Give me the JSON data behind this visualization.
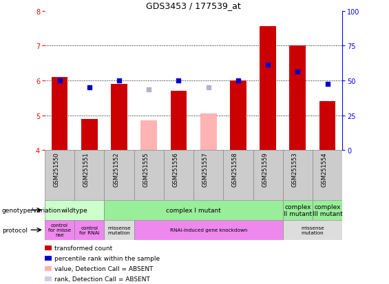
{
  "title": "GDS3453 / 177539_at",
  "samples": [
    "GSM251550",
    "GSM251551",
    "GSM251552",
    "GSM251555",
    "GSM251556",
    "GSM251557",
    "GSM251558",
    "GSM251559",
    "GSM251553",
    "GSM251554"
  ],
  "bar_values": [
    6.1,
    4.9,
    5.9,
    null,
    5.7,
    null,
    6.0,
    7.55,
    7.0,
    5.4
  ],
  "bar_absent_values": [
    null,
    null,
    null,
    4.85,
    null,
    5.05,
    null,
    null,
    null,
    null
  ],
  "dot_values": [
    6.0,
    5.8,
    6.0,
    5.75,
    6.0,
    5.8,
    6.0,
    6.45,
    6.25,
    5.9
  ],
  "dot_absent": [
    false,
    false,
    false,
    true,
    false,
    true,
    false,
    false,
    false,
    false
  ],
  "ylim": [
    4.0,
    8.0
  ],
  "yticks_left": [
    4,
    5,
    6,
    7,
    8
  ],
  "yticks_right": [
    0,
    25,
    50,
    75,
    100
  ],
  "bar_color": "#cc0000",
  "bar_absent_color": "#ffb3b3",
  "dot_color": "#0000cc",
  "dot_absent_color": "#b3b3cc",
  "bar_width": 0.55,
  "dot_size": 18,
  "genotype_groups": [
    {
      "label": "wildtype",
      "start": 0,
      "end": 2,
      "color": "#ccffcc"
    },
    {
      "label": "complex I mutant",
      "start": 2,
      "end": 8,
      "color": "#99ee99"
    },
    {
      "label": "complex\nII mutant",
      "start": 8,
      "end": 9,
      "color": "#99ee99"
    },
    {
      "label": "complex\nIII mutant",
      "start": 9,
      "end": 10,
      "color": "#99ee99"
    }
  ],
  "protocol_groups": [
    {
      "label": "control\nfor misse\nnse",
      "start": 0,
      "end": 1,
      "color": "#ee88ee"
    },
    {
      "label": "control\nfor RNAi",
      "start": 1,
      "end": 2,
      "color": "#ee88ee"
    },
    {
      "label": "missense\nmutation",
      "start": 2,
      "end": 3,
      "color": "#dddddd"
    },
    {
      "label": "RNAi-induced gene knockdown",
      "start": 3,
      "end": 8,
      "color": "#ee88ee"
    },
    {
      "label": "missense\nmutation",
      "start": 8,
      "end": 10,
      "color": "#dddddd"
    }
  ],
  "legend_items": [
    {
      "color": "#cc0000",
      "label": "transformed count"
    },
    {
      "color": "#0000cc",
      "label": "percentile rank within the sample"
    },
    {
      "color": "#ffb3b3",
      "label": "value, Detection Call = ABSENT"
    },
    {
      "color": "#ccccee",
      "label": "rank, Detection Call = ABSENT"
    }
  ]
}
